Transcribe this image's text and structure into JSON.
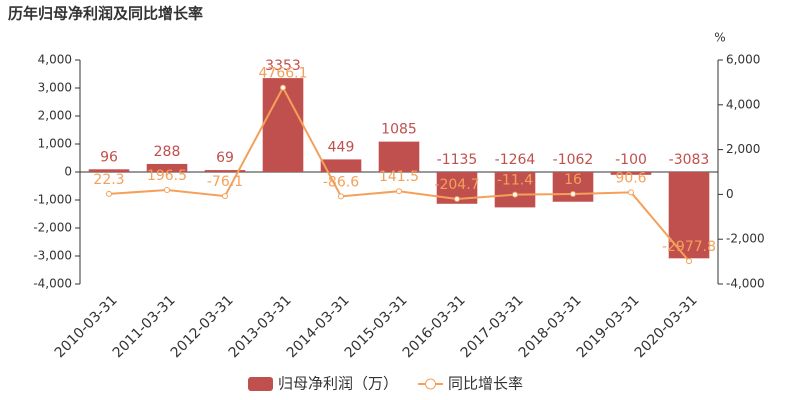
{
  "chart_data": {
    "type": "bar",
    "title": "历年归母净利润及同比增长率",
    "y2_unit": "%",
    "categories": [
      "2010-03-31",
      "2011-03-31",
      "2012-03-31",
      "2013-03-31",
      "2014-03-31",
      "2015-03-31",
      "2016-03-31",
      "2017-03-31",
      "2018-03-31",
      "2019-03-31",
      "2020-03-31"
    ],
    "series": [
      {
        "name": "归母净利润（万）",
        "type": "bar",
        "color": "#c0504d",
        "values": [
          96,
          288,
          69,
          3353,
          449,
          1085,
          -1135,
          -1264,
          -1062,
          -100,
          -3083
        ]
      },
      {
        "name": "同比增长率",
        "type": "line",
        "axis": "y2",
        "color": "#f5a05a",
        "values": [
          22.3,
          196.5,
          -76.1,
          4766.1,
          -86.6,
          141.5,
          -204.7,
          -11.4,
          16,
          90.6,
          -2977.8
        ]
      }
    ],
    "ylim": [
      -4000,
      4000
    ],
    "yticks": [
      {
        "value": -4000,
        "label": "-4,000"
      },
      {
        "value": -3000,
        "label": "-3,000"
      },
      {
        "value": -2000,
        "label": "-2,000"
      },
      {
        "value": -1000,
        "label": "-1,000"
      },
      0,
      {
        "value": 1000,
        "label": "1,000"
      },
      {
        "value": 2000,
        "label": "2,000"
      },
      {
        "value": 3000,
        "label": "3,000"
      },
      {
        "value": 4000,
        "label": "4,000"
      }
    ],
    "y2lim": [
      -4000,
      6000
    ],
    "y2ticks": [
      {
        "value": -4000,
        "label": "-4,000"
      },
      {
        "value": -2000,
        "label": "-2,000"
      },
      0,
      {
        "value": 2000,
        "label": "2,000"
      },
      {
        "value": 4000,
        "label": "4,000"
      },
      {
        "value": 6000,
        "label": "6,000"
      }
    ],
    "legend": "bottom"
  }
}
